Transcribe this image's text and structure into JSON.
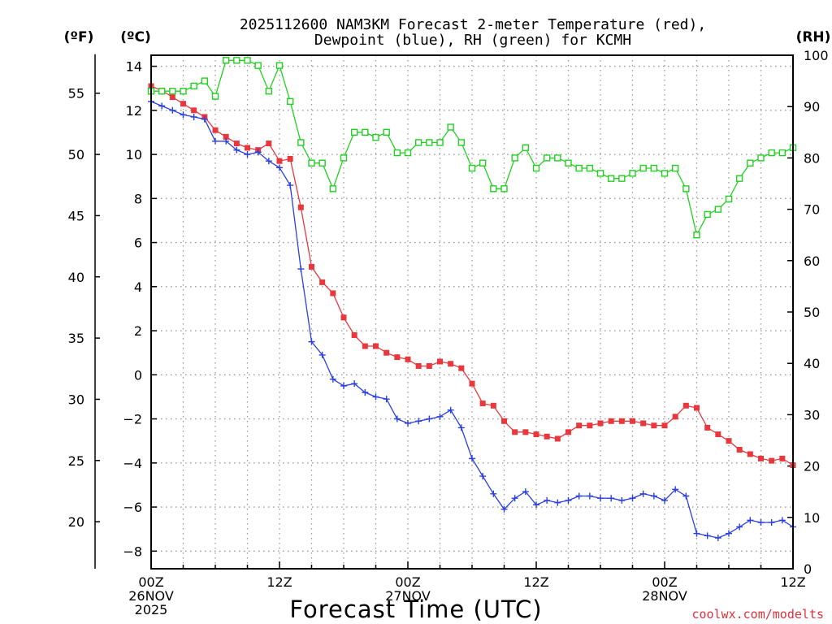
{
  "chart_data": {
    "type": "line",
    "title_line1": "2025112600 NAM3KM Forecast 2-meter Temperature (red),",
    "title_line2": "Dewpoint (blue), RH (green) for KCMH",
    "unit_f": "(ºF)",
    "unit_c": "(ºC)",
    "unit_rh": "(RH)",
    "xlabel": "Forecast Time (UTC)",
    "credit": "coolwx.com/modelts",
    "x_range_hours": [
      0,
      60
    ],
    "x_ticks": [
      {
        "hour": 0,
        "lines": [
          "00Z",
          "26NOV",
          "2025"
        ]
      },
      {
        "hour": 12,
        "lines": [
          "12Z"
        ]
      },
      {
        "hour": 24,
        "lines": [
          "00Z",
          "27NOV"
        ]
      },
      {
        "hour": 36,
        "lines": [
          "12Z"
        ]
      },
      {
        "hour": 48,
        "lines": [
          "00Z",
          "28NOV"
        ]
      },
      {
        "hour": 60,
        "lines": [
          "12Z"
        ]
      }
    ],
    "celsius_axis": {
      "range": [
        -8.8,
        14.5
      ],
      "ticks": [
        14,
        12,
        10,
        8,
        6,
        4,
        2,
        0,
        -2,
        -4,
        -6,
        -8
      ]
    },
    "fahrenheit_axis": {
      "ticks": [
        55,
        50,
        45,
        40,
        35,
        30,
        25,
        20
      ]
    },
    "rh_axis": {
      "range": [
        0,
        100
      ],
      "ticks": [
        100,
        90,
        80,
        70,
        60,
        50,
        40,
        30,
        20,
        10,
        0
      ]
    },
    "hours": [
      0,
      1,
      2,
      3,
      4,
      5,
      6,
      7,
      8,
      9,
      10,
      11,
      12,
      13,
      14,
      15,
      16,
      17,
      18,
      19,
      20,
      21,
      22,
      23,
      24,
      25,
      26,
      27,
      28,
      29,
      30,
      31,
      32,
      33,
      34,
      35,
      36,
      37,
      38,
      39,
      40,
      41,
      42,
      43,
      44,
      45,
      46,
      47,
      48,
      49,
      50,
      51,
      52,
      53,
      54,
      55,
      56,
      57,
      58,
      59,
      60
    ],
    "series": [
      {
        "name": "2-meter Temperature (°C)",
        "color": "#e8383d",
        "marker": "square-filled",
        "axis": "celsius",
        "values": [
          13.1,
          12.9,
          12.6,
          12.3,
          12.0,
          11.7,
          11.1,
          10.8,
          10.5,
          10.3,
          10.2,
          10.5,
          9.7,
          9.8,
          7.6,
          4.9,
          4.2,
          3.7,
          2.6,
          1.8,
          1.3,
          1.3,
          1.0,
          0.8,
          0.7,
          0.4,
          0.4,
          0.6,
          0.5,
          0.3,
          -0.4,
          -1.3,
          -1.4,
          -2.1,
          -2.6,
          -2.6,
          -2.7,
          -2.8,
          -2.9,
          -2.6,
          -2.3,
          -2.3,
          -2.2,
          -2.1,
          -2.1,
          -2.1,
          -2.2,
          -2.3,
          -2.3,
          -1.9,
          -1.4,
          -1.5,
          -2.4,
          -2.7,
          -3.0,
          -3.4,
          -3.6,
          -3.8,
          -3.9,
          -3.8,
          -4.1
        ]
      },
      {
        "name": "Dewpoint (°C)",
        "color": "#2a3fe0",
        "marker": "plus",
        "axis": "celsius",
        "values": [
          12.4,
          12.2,
          12.0,
          11.8,
          11.7,
          11.6,
          10.6,
          10.6,
          10.2,
          10.0,
          10.1,
          9.7,
          9.4,
          8.6,
          4.8,
          1.5,
          0.9,
          -0.2,
          -0.5,
          -0.4,
          -0.8,
          -1.0,
          -1.1,
          -2.0,
          -2.2,
          -2.1,
          -2.0,
          -1.9,
          -1.6,
          -2.4,
          -3.8,
          -4.6,
          -5.4,
          -6.1,
          -5.6,
          -5.3,
          -5.9,
          -5.7,
          -5.8,
          -5.7,
          -5.5,
          -5.5,
          -5.6,
          -5.6,
          -5.7,
          -5.6,
          -5.4,
          -5.5,
          -5.7,
          -5.2,
          -5.5,
          -7.2,
          -7.3,
          -7.4,
          -7.2,
          -6.9,
          -6.6,
          -6.7,
          -6.7,
          -6.6,
          -6.9
        ]
      },
      {
        "name": "Relative Humidity (%)",
        "color": "#22d022",
        "marker": "square-open",
        "axis": "rh",
        "values": [
          93,
          93,
          93,
          93,
          94,
          95,
          92,
          99,
          99,
          99,
          98,
          93,
          98,
          91,
          83,
          79,
          79,
          74,
          80,
          85,
          85,
          84,
          85,
          81,
          81,
          83,
          83,
          83,
          86,
          83,
          78,
          79,
          74,
          74,
          80,
          82,
          78,
          80,
          80,
          79,
          78,
          78,
          77,
          76,
          76,
          77,
          78,
          78,
          77,
          78,
          74,
          65,
          69,
          70,
          72,
          76,
          79,
          80,
          81,
          81,
          82
        ]
      }
    ]
  }
}
